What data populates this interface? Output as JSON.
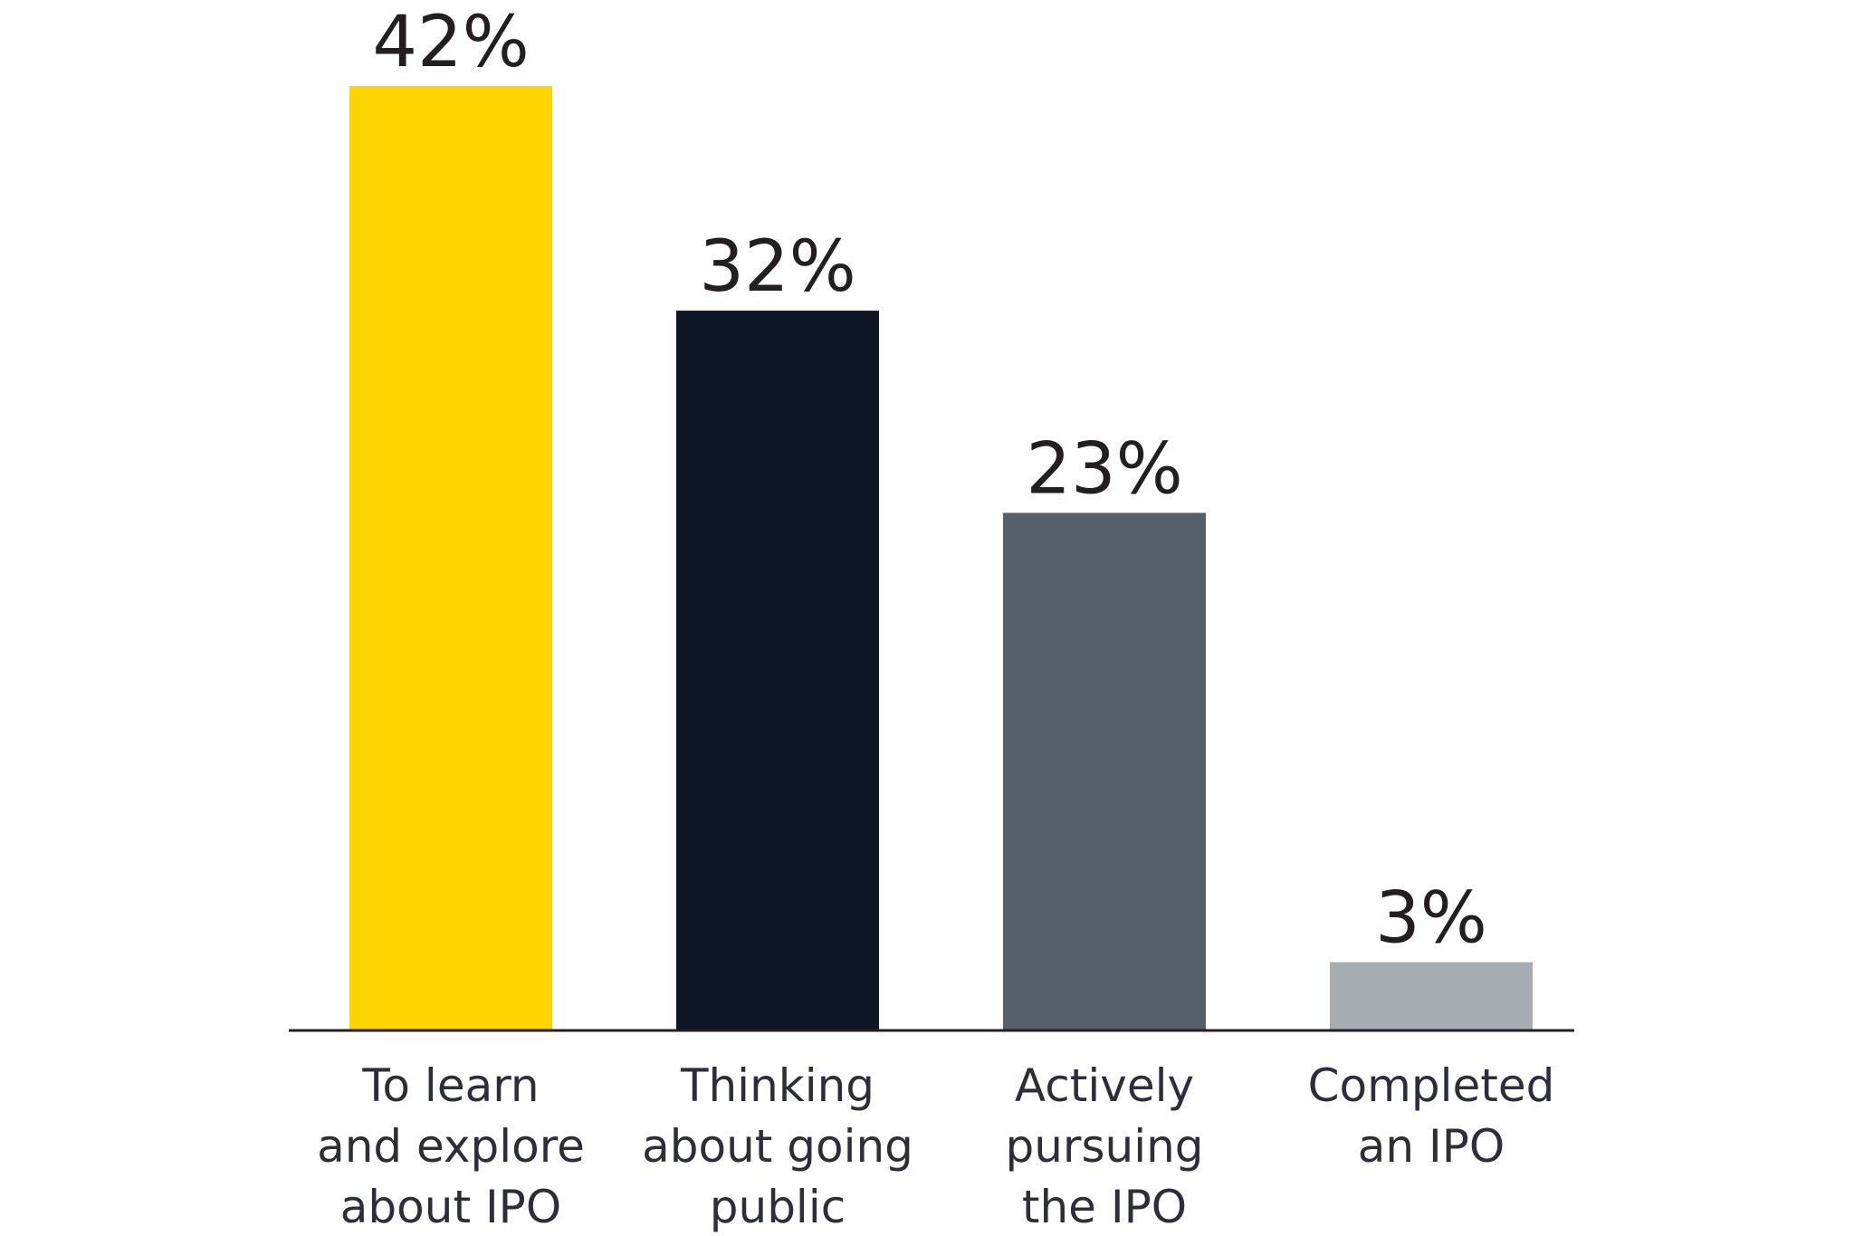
{
  "chart_data": {
    "type": "bar",
    "title": "",
    "xlabel": "",
    "ylabel": "",
    "ylim": [
      0,
      42
    ],
    "grid": false,
    "categories": [
      [
        "To learn",
        "and explore",
        "about IPO"
      ],
      [
        "Thinking",
        "about going",
        "public"
      ],
      [
        "Actively",
        "pursuing",
        "the IPO"
      ],
      [
        "Completed",
        "an IPO"
      ]
    ],
    "values": [
      42,
      32,
      23,
      3
    ],
    "value_labels": [
      "42%",
      "32%",
      "23%",
      "3%"
    ],
    "colors": [
      "#FFD500",
      "#0F1727",
      "#56606B",
      "#A7AEB3"
    ]
  }
}
